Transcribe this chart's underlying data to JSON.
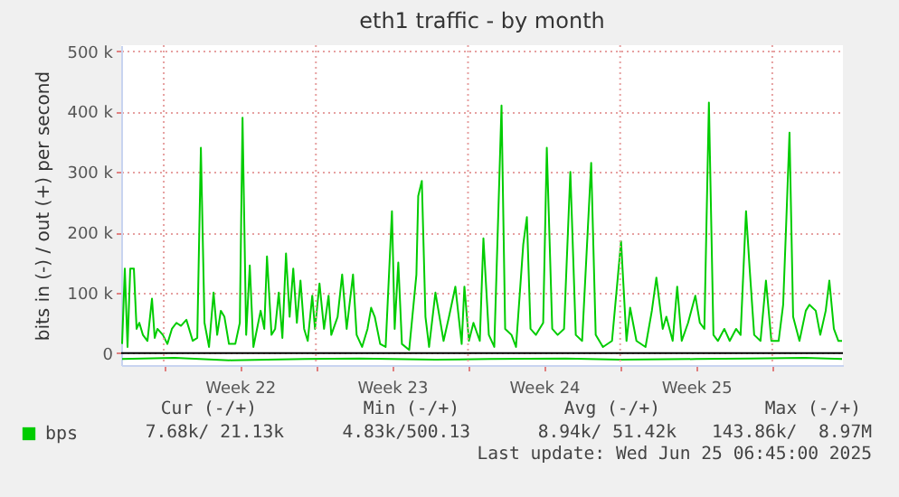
{
  "chart_data": {
    "type": "line",
    "title": "eth1 traffic - by month",
    "ylabel": "bits in (-) / out (+) per second",
    "xlim": [
      "2025-05-24T01:00",
      "2025-06-26T06:00"
    ],
    "xticks": [
      {
        "value": "2025-05-26T00:00",
        "label": null
      },
      {
        "value": "2025-05-29T12:00",
        "label": "Week 22"
      },
      {
        "value": "2025-06-02T00:00",
        "label": null
      },
      {
        "value": "2025-06-05T12:00",
        "label": "Week 23"
      },
      {
        "value": "2025-06-09T00:00",
        "label": null
      },
      {
        "value": "2025-06-12T12:00",
        "label": "Week 24"
      },
      {
        "value": "2025-06-16T00:00",
        "label": null
      },
      {
        "value": "2025-06-19T12:00",
        "label": "Week 25"
      },
      {
        "value": "2025-06-23T00:00",
        "label": null
      }
    ],
    "ylim": [
      -20000,
      510000
    ],
    "yticks": [
      {
        "value": 0,
        "label": "0"
      },
      {
        "value": 100000,
        "label": "100 k"
      },
      {
        "value": 200000,
        "label": "200 k"
      },
      {
        "value": 300000,
        "label": "300 k"
      },
      {
        "value": 400000,
        "label": "400 k"
      },
      {
        "value": 500000,
        "label": "500 k"
      }
    ],
    "grid": true,
    "legend": "bottom",
    "marker": "none",
    "line_style": "solid",
    "ref_lines": [
      {
        "axis": "y",
        "value": 0,
        "label": null,
        "color": "#000000"
      }
    ],
    "series": [
      {
        "name": "bps",
        "color": "#00cc00",
        "x": [
          "2025-05-24T02:00",
          "2025-05-24T05:00",
          "2025-05-24T08:00",
          "2025-05-24T11:00",
          "2025-05-24T15:00",
          "2025-05-24T18:00",
          "2025-05-24T21:00",
          "2025-05-25T01:00",
          "2025-05-25T06:00",
          "2025-05-25T11:00",
          "2025-05-25T14:00",
          "2025-05-25T17:00",
          "2025-05-25T23:00",
          "2025-05-26T04:00",
          "2025-05-26T09:00",
          "2025-05-26T14:00",
          "2025-05-26T19:00",
          "2025-05-27T01:00",
          "2025-05-27T08:00",
          "2025-05-27T13:00",
          "2025-05-27T17:00",
          "2025-05-27T21:00",
          "2025-05-28T02:00",
          "2025-05-28T07:00",
          "2025-05-28T11:00",
          "2025-05-28T15:00",
          "2025-05-28T19:00",
          "2025-05-29T00:00",
          "2025-05-29T07:00",
          "2025-05-29T12:00",
          "2025-05-29T15:00",
          "2025-05-29T19:00",
          "2025-05-29T23:00",
          "2025-05-30T03:00",
          "2025-05-30T11:00",
          "2025-05-30T15:00",
          "2025-05-30T18:00",
          "2025-05-30T23:00",
          "2025-05-31T03:00",
          "2025-05-31T07:00",
          "2025-05-31T11:00",
          "2025-05-31T15:00",
          "2025-05-31T19:00",
          "2025-05-31T23:00",
          "2025-06-01T03:00",
          "2025-06-01T07:00",
          "2025-06-01T11:00",
          "2025-06-01T15:00",
          "2025-06-01T20:00",
          "2025-06-01T23:00",
          "2025-06-02T04:00",
          "2025-06-02T09:00",
          "2025-06-02T14:00",
          "2025-06-02T17:00",
          "2025-06-03T00:00",
          "2025-06-03T05:00",
          "2025-06-03T10:00",
          "2025-06-03T17:00",
          "2025-06-03T21:00",
          "2025-06-04T03:00",
          "2025-06-04T09:00",
          "2025-06-04T13:00",
          "2025-06-04T17:00",
          "2025-06-04T23:00",
          "2025-06-05T05:00",
          "2025-06-05T12:00",
          "2025-06-05T15:00",
          "2025-06-05T19:00",
          "2025-06-05T23:00",
          "2025-06-06T07:00",
          "2025-06-06T15:00",
          "2025-06-06T17:00",
          "2025-06-06T21:00",
          "2025-06-07T01:00",
          "2025-06-07T05:00",
          "2025-06-07T12:00",
          "2025-06-07T21:00",
          "2025-06-08T03:00",
          "2025-06-08T10:00",
          "2025-06-08T17:00",
          "2025-06-08T20:00",
          "2025-06-09T01:00",
          "2025-06-09T06:00",
          "2025-06-09T13:00",
          "2025-06-09T17:00",
          "2025-06-09T23:00",
          "2025-06-10T05:00",
          "2025-06-10T13:00",
          "2025-06-10T17:00",
          "2025-06-11T00:00",
          "2025-06-11T05:00",
          "2025-06-11T13:00",
          "2025-06-11T17:00",
          "2025-06-11T21:00",
          "2025-06-12T03:00",
          "2025-06-12T11:00",
          "2025-06-12T15:00",
          "2025-06-12T21:00",
          "2025-06-13T03:00",
          "2025-06-13T10:00",
          "2025-06-13T17:00",
          "2025-06-13T23:00",
          "2025-06-14T06:00",
          "2025-06-14T16:00",
          "2025-06-14T21:00",
          "2025-06-15T05:00",
          "2025-06-15T15:00",
          "2025-06-16T01:00",
          "2025-06-16T07:00",
          "2025-06-16T11:00",
          "2025-06-16T18:00",
          "2025-06-17T04:00",
          "2025-06-17T11:00",
          "2025-06-17T16:00",
          "2025-06-17T23:00",
          "2025-06-18T03:00",
          "2025-06-18T10:00",
          "2025-06-18T15:00",
          "2025-06-18T20:00",
          "2025-06-19T03:00",
          "2025-06-19T11:00",
          "2025-06-19T16:00",
          "2025-06-19T21:00",
          "2025-06-20T02:00",
          "2025-06-20T07:00",
          "2025-06-20T12:00",
          "2025-06-20T19:00",
          "2025-06-21T01:00",
          "2025-06-21T08:00",
          "2025-06-21T13:00",
          "2025-06-21T19:00",
          "2025-06-21T23:00",
          "2025-06-22T04:00",
          "2025-06-22T11:00",
          "2025-06-22T17:00",
          "2025-06-22T23:00",
          "2025-06-23T07:00",
          "2025-06-23T12:00",
          "2025-06-23T15:00",
          "2025-06-23T19:00",
          "2025-06-23T23:00",
          "2025-06-24T06:00",
          "2025-06-24T13:00",
          "2025-06-24T17:00",
          "2025-06-25T00:00",
          "2025-06-25T05:00",
          "2025-06-25T11:00",
          "2025-06-25T15:00",
          "2025-06-25T20:00",
          "2025-06-26T01:00",
          "2025-06-26T05:00"
        ],
        "values": [
          15000,
          140000,
          10000,
          140000,
          140000,
          40000,
          50000,
          30000,
          20000,
          90000,
          25000,
          40000,
          30000,
          15000,
          40000,
          50000,
          45000,
          55000,
          20000,
          25000,
          340000,
          50000,
          10000,
          100000,
          30000,
          70000,
          60000,
          15000,
          15000,
          50000,
          390000,
          30000,
          145000,
          10000,
          70000,
          40000,
          160000,
          30000,
          40000,
          100000,
          25000,
          165000,
          60000,
          140000,
          50000,
          120000,
          40000,
          20000,
          95000,
          40000,
          115000,
          40000,
          95000,
          30000,
          60000,
          130000,
          40000,
          130000,
          30000,
          10000,
          40000,
          75000,
          60000,
          15000,
          10000,
          235000,
          40000,
          150000,
          15000,
          5000,
          130000,
          260000,
          285000,
          60000,
          10000,
          100000,
          20000,
          60000,
          110000,
          15000,
          110000,
          20000,
          50000,
          20000,
          190000,
          30000,
          10000,
          410000,
          40000,
          30000,
          10000,
          180000,
          225000,
          40000,
          30000,
          50000,
          340000,
          40000,
          30000,
          40000,
          300000,
          30000,
          20000,
          315000,
          30000,
          10000,
          20000,
          185000,
          20000,
          75000,
          20000,
          10000,
          70000,
          125000,
          40000,
          60000,
          20000,
          110000,
          20000,
          50000,
          95000,
          50000,
          40000,
          415000,
          30000,
          20000,
          40000,
          20000,
          40000,
          30000,
          235000,
          140000,
          30000,
          20000,
          120000,
          20000,
          20000,
          80000,
          200000,
          365000,
          60000,
          20000,
          70000,
          80000,
          70000,
          30000,
          70000,
          120000,
          40000,
          20000,
          20000
        ]
      },
      {
        "color": "#00cc00",
        "x": [
          "2025-05-24T02:00",
          "2025-05-26T12:00",
          "2025-05-29T00:00",
          "2025-06-01T12:00",
          "2025-06-04T00:00",
          "2025-06-07T12:00",
          "2025-06-10T00:00",
          "2025-06-13T12:00",
          "2025-06-16T00:00",
          "2025-06-19T12:00",
          "2025-06-22T00:00",
          "2025-06-24T12:00",
          "2025-06-26T05:00"
        ],
        "values": [
          -10000,
          -8000,
          -12000,
          -10000,
          -9000,
          -11000,
          -10000,
          -9000,
          -11000,
          -10000,
          -9000,
          -8000,
          -10000
        ]
      }
    ],
    "annotations": [
      "Cur (-/+)",
      "Min (-/+)",
      "Avg (-/+)",
      "Max (-/+)",
      "7.68k/ 21.13k",
      "4.83k/500.13",
      "8.94k/ 51.42k",
      "143.86k/  8.97M",
      "Last update: Wed Jun 25 06:45:00 2025"
    ]
  }
}
